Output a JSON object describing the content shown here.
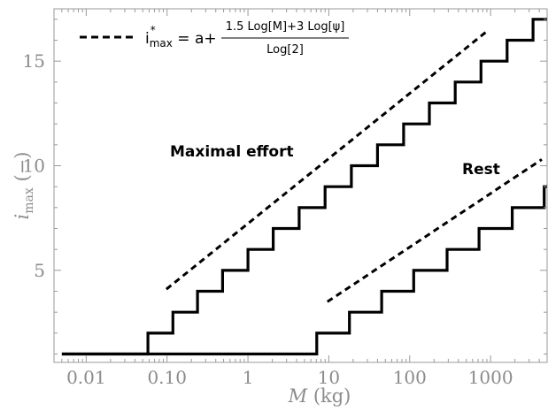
{
  "chart_data": {
    "type": "line",
    "xscale": "log",
    "xlim": [
      0.004,
      5000
    ],
    "ylim": [
      0.6,
      17.5
    ],
    "xticks": [
      0.01,
      0.1,
      1,
      10,
      100,
      1000
    ],
    "xtick_labels": [
      "0.01",
      "0.10",
      "1",
      "10",
      "100",
      "1000"
    ],
    "yticks": [
      5,
      10,
      15
    ],
    "ytick_labels": [
      "5",
      "10",
      "15"
    ],
    "xlabel_var": "M",
    "xlabel_unit": " (kg)",
    "ylabel_var": "i",
    "ylabel_sub": "max",
    "ylabel_unit": " (−)",
    "grid": false,
    "legend_position": "top-left",
    "legend": {
      "lhs_base": "i",
      "lhs_sup": "*",
      "lhs_sub": "max",
      "eq": " = a+",
      "numerator": "1.5 Log[M]+3 Log[ψ]",
      "denominator": "Log[2]"
    },
    "annotations": [
      {
        "text": "Maximal effort",
        "x": 0.14,
        "y": 10.7
      },
      {
        "text": "Rest",
        "x": 290,
        "y": 8.7
      }
    ],
    "series": [
      {
        "style": "solid",
        "x": [
          0.005,
          0.058,
          0.058,
          0.118,
          0.118,
          0.238,
          0.238,
          0.485,
          0.485,
          1.0,
          1.0,
          2.05,
          2.05,
          4.3,
          4.3,
          9.0,
          9.0,
          19.0,
          19.0,
          40.0,
          40.0,
          84.0,
          84.0,
          175.0,
          175.0,
          365.0,
          365.0,
          760.0,
          760.0,
          1600.0,
          1600.0,
          3350.0,
          3350.0,
          5000.0
        ],
        "y": [
          1,
          1,
          2,
          2,
          3,
          3,
          4,
          4,
          5,
          5,
          6,
          6,
          7,
          7,
          8,
          8,
          9,
          9,
          10,
          10,
          11,
          11,
          12,
          12,
          13,
          13,
          14,
          14,
          15,
          15,
          16,
          16,
          17,
          17
        ]
      },
      {
        "style": "solid",
        "x": [
          0.005,
          7.1,
          7.1,
          18.0,
          18.0,
          45.0,
          45.0,
          112.0,
          112.0,
          290.0,
          290.0,
          720.0,
          720.0,
          1850.0,
          1850.0,
          4600.0,
          4600.0,
          5000.0
        ],
        "y": [
          1,
          1,
          2,
          2,
          3,
          3,
          4,
          4,
          5,
          5,
          6,
          6,
          7,
          7,
          8,
          8,
          9,
          9
        ]
      },
      {
        "style": "dashed",
        "x": [
          0.098,
          950
        ],
        "y": [
          4.1,
          16.5
        ]
      },
      {
        "style": "dashed",
        "x": [
          9.6,
          4300
        ],
        "y": [
          3.5,
          10.3
        ]
      }
    ]
  }
}
